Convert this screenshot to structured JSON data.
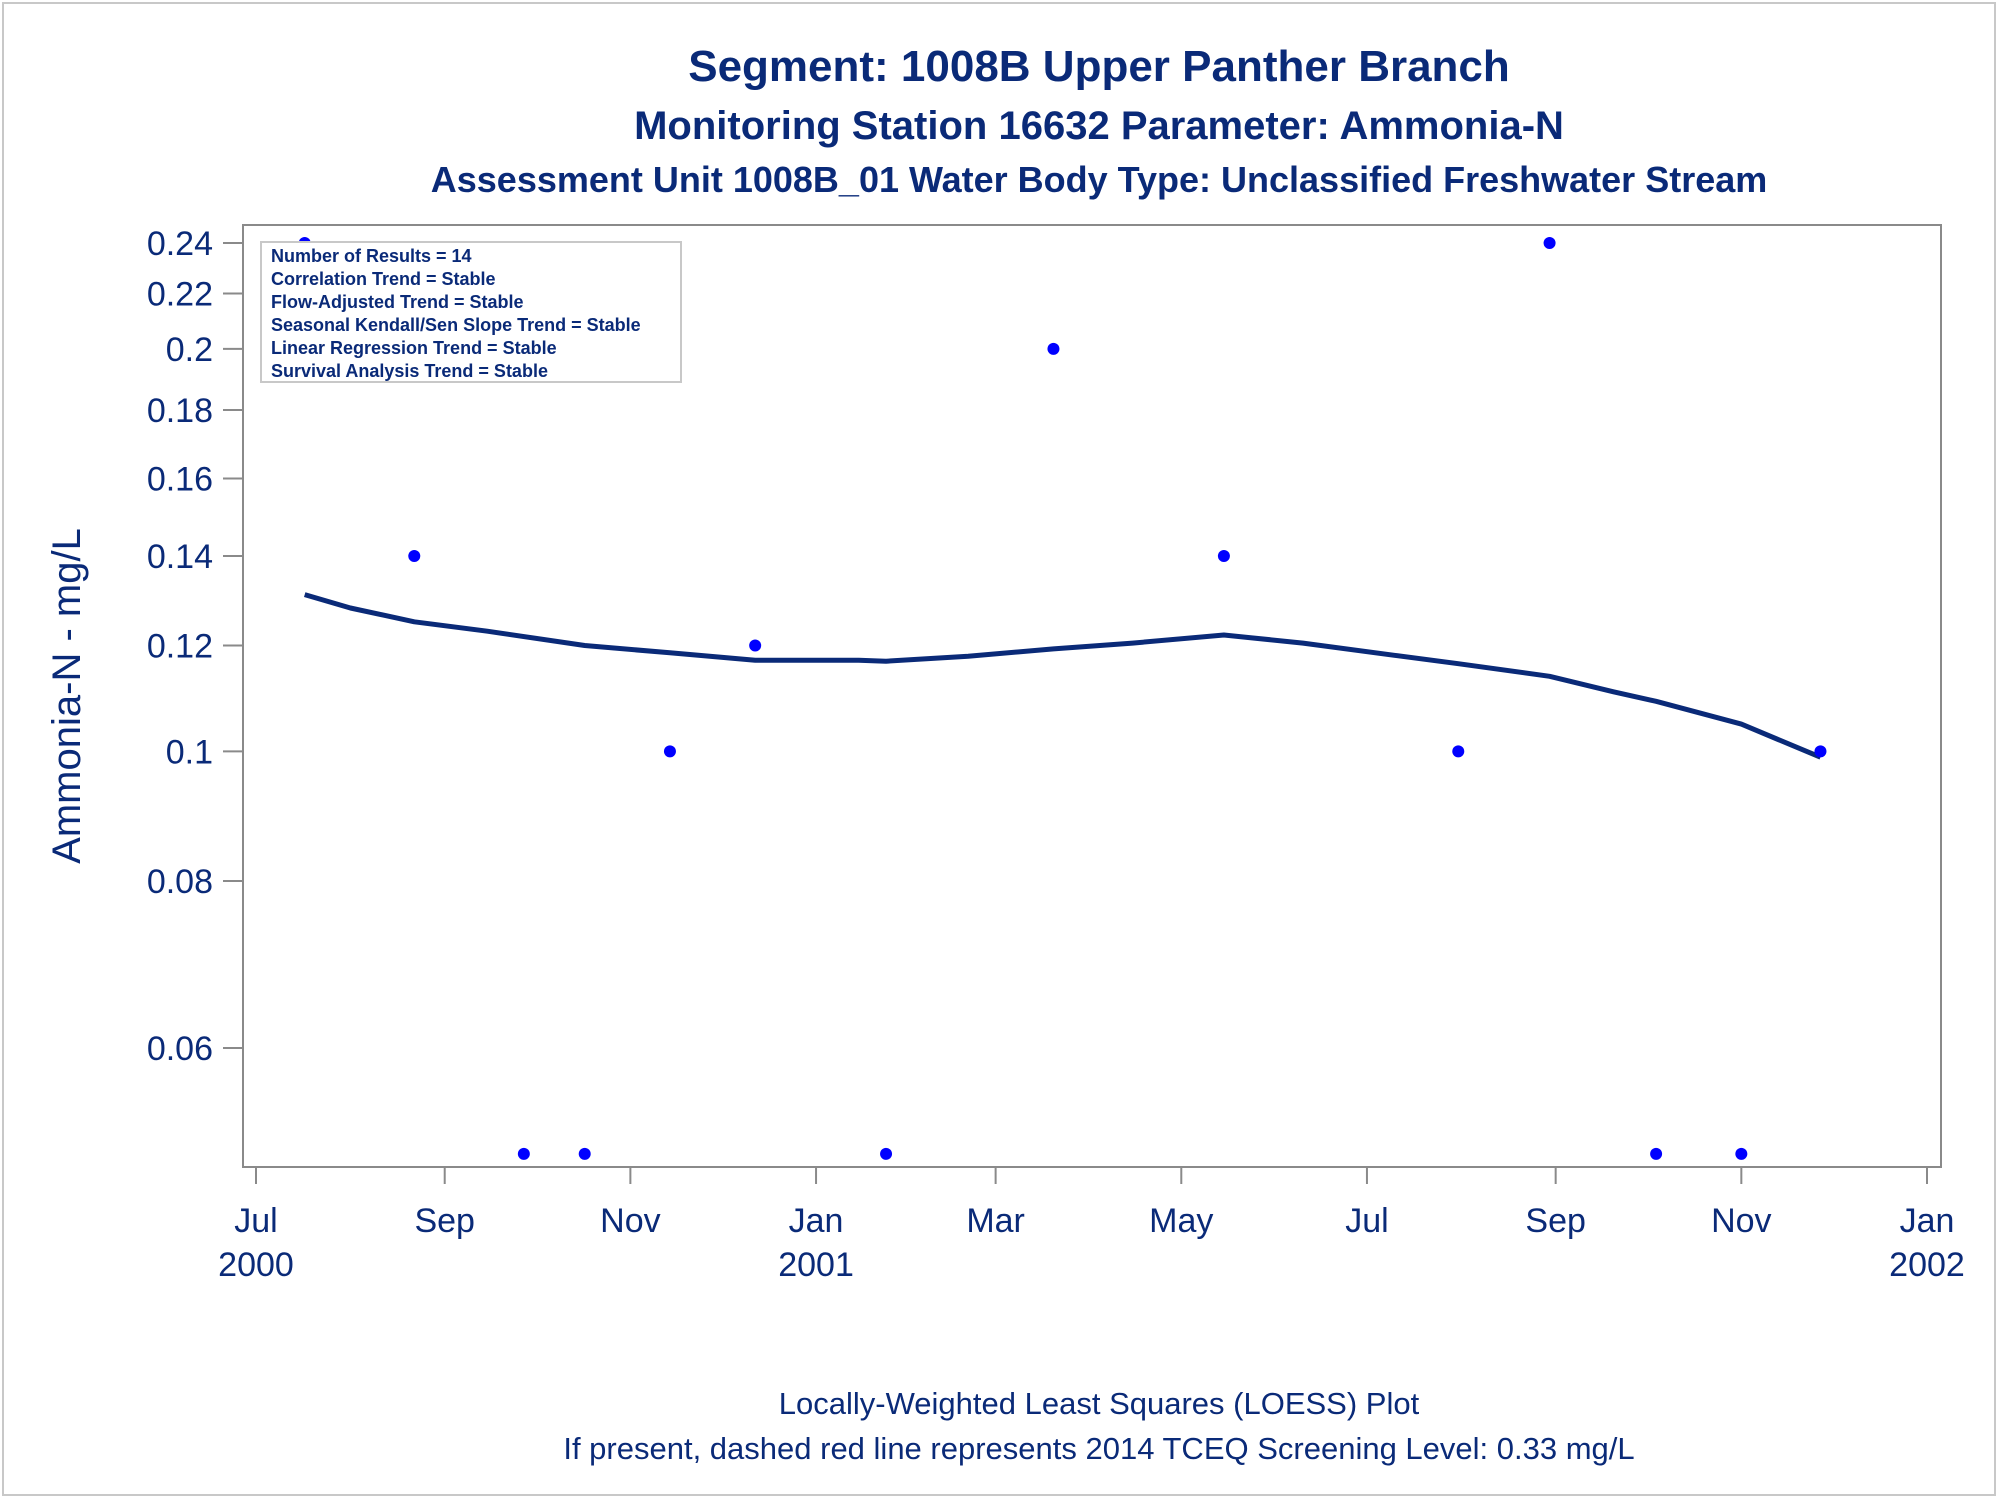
{
  "colors": {
    "text": "#0a2a78",
    "loess": "#0a2a78",
    "points": "#0000ff",
    "axis": "#8a8a8a"
  },
  "titles": {
    "line1": "Segment: 1008B  Upper Panther Branch",
    "line2": "Monitoring Station 16632 Parameter: Ammonia-N",
    "line3": "Assessment Unit 1008B_01   Water Body Type: Unclassified Freshwater Stream"
  },
  "stats_box": {
    "lines": [
      "Number of Results = 14",
      "Correlation Trend = Stable",
      "Flow-Adjusted Trend = Stable",
      "Seasonal Kendall/Sen Slope Trend = Stable",
      "Linear Regression Trend = Stable",
      "Survival Analysis Trend = Stable"
    ]
  },
  "footnotes": {
    "line1": "Locally-Weighted Least Squares (LOESS) Plot",
    "line2": "If present, dashed red line represents 2014 TCEQ Screening Level: 0.33 mg/L"
  },
  "chart_data": {
    "type": "scatter",
    "ylabel": "Ammonia-N - mg/L",
    "xlabel": "",
    "y_scale": "log",
    "ylim": [
      0.05,
      0.245
    ],
    "xlim": [
      "2000-07-01",
      "2002-01-01"
    ],
    "y_ticks": [
      {
        "value": 0.06,
        "label": "0.06"
      },
      {
        "value": 0.08,
        "label": "0.08"
      },
      {
        "value": 0.1,
        "label": "0.1"
      },
      {
        "value": 0.12,
        "label": "0.12"
      },
      {
        "value": 0.14,
        "label": "0.14"
      },
      {
        "value": 0.16,
        "label": "0.16"
      },
      {
        "value": 0.18,
        "label": "0.18"
      },
      {
        "value": 0.2,
        "label": "0.2"
      },
      {
        "value": 0.22,
        "label": "0.22"
      },
      {
        "value": 0.24,
        "label": "0.24"
      }
    ],
    "x_ticks": [
      {
        "date": "2000-07-01",
        "month": "Jul",
        "year": "2000"
      },
      {
        "date": "2000-09-01",
        "month": "Sep",
        "year": ""
      },
      {
        "date": "2000-11-01",
        "month": "Nov",
        "year": ""
      },
      {
        "date": "2001-01-01",
        "month": "Jan",
        "year": "2001"
      },
      {
        "date": "2001-03-01",
        "month": "Mar",
        "year": ""
      },
      {
        "date": "2001-05-01",
        "month": "May",
        "year": ""
      },
      {
        "date": "2001-07-01",
        "month": "Jul",
        "year": ""
      },
      {
        "date": "2001-09-01",
        "month": "Sep",
        "year": ""
      },
      {
        "date": "2001-11-01",
        "month": "Nov",
        "year": ""
      },
      {
        "date": "2002-01-01",
        "month": "Jan",
        "year": "2002"
      }
    ],
    "series": [
      {
        "type": "scatter",
        "points": [
          {
            "x": "2000-07-17",
            "y": 0.24
          },
          {
            "x": "2000-08-22",
            "y": 0.14
          },
          {
            "x": "2000-09-27",
            "y": 0.05
          },
          {
            "x": "2000-10-17",
            "y": 0.05
          },
          {
            "x": "2000-11-14",
            "y": 0.1
          },
          {
            "x": "2000-12-12",
            "y": 0.12
          },
          {
            "x": "2001-01-24",
            "y": 0.05
          },
          {
            "x": "2001-03-20",
            "y": 0.2
          },
          {
            "x": "2001-05-15",
            "y": 0.14
          },
          {
            "x": "2001-07-31",
            "y": 0.1
          },
          {
            "x": "2001-08-30",
            "y": 0.24
          },
          {
            "x": "2001-10-04",
            "y": 0.05
          },
          {
            "x": "2001-11-01",
            "y": 0.05
          },
          {
            "x": "2001-11-27",
            "y": 0.1
          }
        ]
      },
      {
        "type": "line",
        "points": [
          {
            "x": "2000-07-17",
            "y": 0.131
          },
          {
            "x": "2000-08-01",
            "y": 0.128
          },
          {
            "x": "2000-08-22",
            "y": 0.125
          },
          {
            "x": "2000-09-15",
            "y": 0.123
          },
          {
            "x": "2000-10-17",
            "y": 0.12
          },
          {
            "x": "2000-11-14",
            "y": 0.1185
          },
          {
            "x": "2000-12-12",
            "y": 0.117
          },
          {
            "x": "2001-01-15",
            "y": 0.117
          },
          {
            "x": "2001-01-24",
            "y": 0.1168
          },
          {
            "x": "2001-02-20",
            "y": 0.1178
          },
          {
            "x": "2001-03-20",
            "y": 0.1193
          },
          {
            "x": "2001-04-15",
            "y": 0.1205
          },
          {
            "x": "2001-05-15",
            "y": 0.1222
          },
          {
            "x": "2001-06-10",
            "y": 0.1205
          },
          {
            "x": "2001-07-10",
            "y": 0.118
          },
          {
            "x": "2001-07-31",
            "y": 0.1163
          },
          {
            "x": "2001-08-30",
            "y": 0.1138
          },
          {
            "x": "2001-09-20",
            "y": 0.1108
          },
          {
            "x": "2001-10-04",
            "y": 0.109
          },
          {
            "x": "2001-11-01",
            "y": 0.1048
          },
          {
            "x": "2001-11-27",
            "y": 0.099
          }
        ]
      }
    ]
  }
}
